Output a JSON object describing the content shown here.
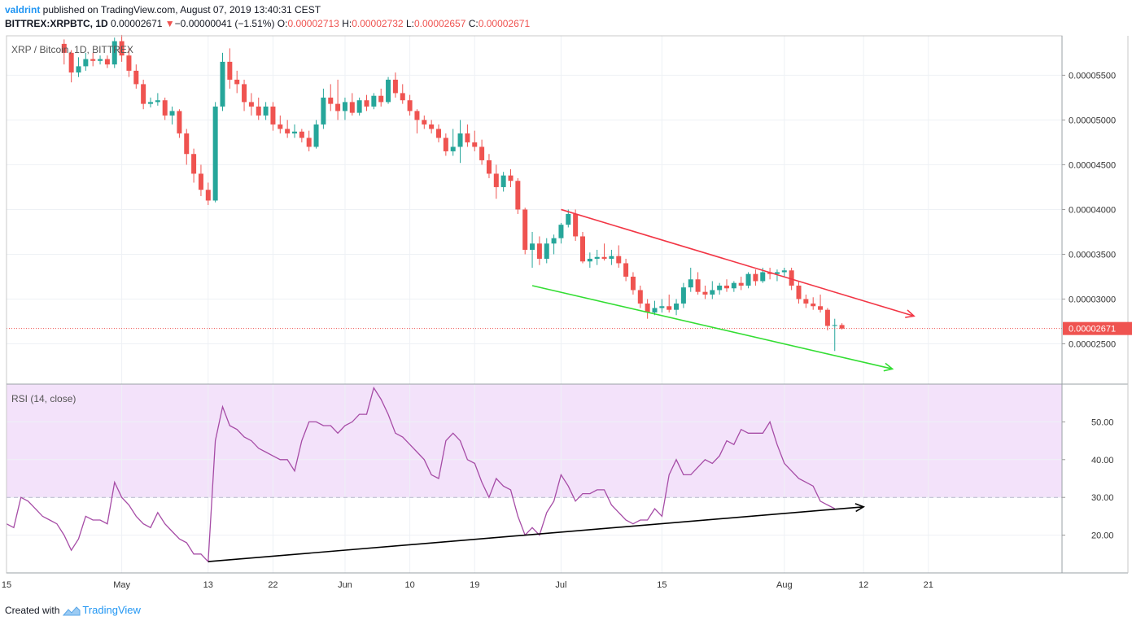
{
  "header": {
    "author": "valdrint",
    "published_text": " published on TradingView.com, August 07, 2019 13:40:31 CEST",
    "symbol": "BITTREX:XRPBTC, 1D",
    "last": "0.00002671",
    "change": "−0.00000041 (−1.51%)",
    "ohlc": {
      "o_label": "O:",
      "o": "0.00002713",
      "h_label": "H:",
      "h": "0.00002732",
      "l_label": "L:",
      "l": "0.00002657",
      "c_label": "C:",
      "c": "0.00002671"
    }
  },
  "footer": {
    "created_with": "Created with",
    "brand": "TradingView"
  },
  "colors": {
    "up": "#26a69a",
    "down": "#ef5350",
    "rsi_line": "#a64ca6",
    "rsi_band": "#f3e2fa",
    "resistance": "#f23645",
    "support": "#33dd33",
    "rsi_trend": "#000000",
    "price_line": "#ef5350",
    "grid": "#eef1f5"
  },
  "chart_data": [
    {
      "type": "candlestick",
      "title": "XRP / Bitcoin, 1D, BITTREX",
      "ylim": [
        2.05e-05,
        5.94e-05
      ],
      "y_ticks": [
        "0.00002500",
        "0.00003000",
        "0.00003500",
        "0.00004000",
        "0.00004500",
        "0.00005000",
        "0.00005500"
      ],
      "x_ticks": [
        {
          "date": "2019-04-15",
          "label": "15"
        },
        {
          "date": "2019-05-01",
          "label": "May"
        },
        {
          "date": "2019-05-13",
          "label": "13"
        },
        {
          "date": "2019-05-22",
          "label": "22"
        },
        {
          "date": "2019-06-01",
          "label": "Jun"
        },
        {
          "date": "2019-06-10",
          "label": "10"
        },
        {
          "date": "2019-06-19",
          "label": "19"
        },
        {
          "date": "2019-07-01",
          "label": "Jul"
        },
        {
          "date": "2019-07-15",
          "label": "15"
        },
        {
          "date": "2019-08-01",
          "label": "Aug"
        },
        {
          "date": "2019-08-12",
          "label": "12"
        },
        {
          "date": "2019-08-21",
          "label": "21"
        }
      ],
      "last_price": 2.671e-05,
      "last_price_label": "0.00002671",
      "start_date": "2019-04-23",
      "ohlc": [
        [
          5.85e-05,
          5.9e-05,
          5.62e-05,
          5.75e-05
        ],
        [
          5.75e-05,
          5.78e-05,
          5.42e-05,
          5.53e-05
        ],
        [
          5.53e-05,
          5.7e-05,
          5.48e-05,
          5.6e-05
        ],
        [
          5.6e-05,
          5.75e-05,
          5.55e-05,
          5.68e-05
        ],
        [
          5.68e-05,
          5.75e-05,
          5.6e-05,
          5.66e-05
        ],
        [
          5.66e-05,
          5.72e-05,
          5.62e-05,
          5.68e-05
        ],
        [
          5.68e-05,
          5.72e-05,
          5.58e-05,
          5.62e-05
        ],
        [
          5.62e-05,
          5.92e-05,
          5.58e-05,
          5.88e-05
        ],
        [
          5.88e-05,
          5.95e-05,
          5.65e-05,
          5.72e-05
        ],
        [
          5.72e-05,
          5.8e-05,
          5.48e-05,
          5.55e-05
        ],
        [
          5.55e-05,
          5.62e-05,
          5.35e-05,
          5.4e-05
        ],
        [
          5.4e-05,
          5.45e-05,
          5.12e-05,
          5.18e-05
        ],
        [
          5.18e-05,
          5.25e-05,
          5.14e-05,
          5.2e-05
        ],
        [
          5.2e-05,
          5.3e-05,
          5.16e-05,
          5.22e-05
        ],
        [
          5.22e-05,
          5.25e-05,
          5e-05,
          5.05e-05
        ],
        [
          5.05e-05,
          5.15e-05,
          4.95e-05,
          5.1e-05
        ],
        [
          5.1e-05,
          5.12e-05,
          4.8e-05,
          4.85e-05
        ],
        [
          4.85e-05,
          4.9e-05,
          4.5e-05,
          4.62e-05
        ],
        [
          4.62e-05,
          4.68e-05,
          4.3e-05,
          4.4e-05
        ],
        [
          4.4e-05,
          4.5e-05,
          4.15e-05,
          4.22e-05
        ],
        [
          4.22e-05,
          4.3e-05,
          4.05e-05,
          4.1e-05
        ],
        [
          4.1e-05,
          5.2e-05,
          4.08e-05,
          5.15e-05
        ],
        [
          5.15e-05,
          5.75e-05,
          5.1e-05,
          5.65e-05
        ],
        [
          5.65e-05,
          5.8e-05,
          5.35e-05,
          5.45e-05
        ],
        [
          5.45e-05,
          5.55e-05,
          5.3e-05,
          5.4e-05
        ],
        [
          5.4e-05,
          5.45e-05,
          5.1e-05,
          5.2e-05
        ],
        [
          5.2e-05,
          5.3e-05,
          5.05e-05,
          5.15e-05
        ],
        [
          5.15e-05,
          5.25e-05,
          5e-05,
          5.05e-05
        ],
        [
          5.05e-05,
          5.2e-05,
          5e-05,
          5.15e-05
        ],
        [
          5.15e-05,
          5.2e-05,
          4.88e-05,
          4.95e-05
        ],
        [
          4.95e-05,
          5.05e-05,
          4.85e-05,
          4.9e-05
        ],
        [
          4.9e-05,
          5e-05,
          4.8e-05,
          4.85e-05
        ],
        [
          4.85e-05,
          4.95e-05,
          4.8e-05,
          4.87e-05
        ],
        [
          4.87e-05,
          4.9e-05,
          4.75e-05,
          4.8e-05
        ],
        [
          4.8e-05,
          4.88e-05,
          4.65e-05,
          4.7e-05
        ],
        [
          4.7e-05,
          5e-05,
          4.68e-05,
          4.95e-05
        ],
        [
          4.95e-05,
          5.35e-05,
          4.9e-05,
          5.25e-05
        ],
        [
          5.25e-05,
          5.4e-05,
          5.1e-05,
          5.18e-05
        ],
        [
          5.18e-05,
          5.45e-05,
          5e-05,
          5.1e-05
        ],
        [
          5.1e-05,
          5.25e-05,
          5e-05,
          5.2e-05
        ],
        [
          5.2e-05,
          5.3e-05,
          5.05e-05,
          5.08e-05
        ],
        [
          5.08e-05,
          5.25e-05,
          5.05e-05,
          5.22e-05
        ],
        [
          5.22e-05,
          5.28e-05,
          5.1e-05,
          5.15e-05
        ],
        [
          5.15e-05,
          5.3e-05,
          5.12e-05,
          5.27e-05
        ],
        [
          5.27e-05,
          5.35e-05,
          5.15e-05,
          5.2e-05
        ],
        [
          5.2e-05,
          5.48e-05,
          5.18e-05,
          5.45e-05
        ],
        [
          5.45e-05,
          5.53e-05,
          5.25e-05,
          5.3e-05
        ],
        [
          5.3e-05,
          5.4e-05,
          5.18e-05,
          5.22e-05
        ],
        [
          5.22e-05,
          5.28e-05,
          5.05e-05,
          5.1e-05
        ],
        [
          5.1e-05,
          5.12e-05,
          4.85e-05,
          5e-05
        ],
        [
          5e-05,
          5.05e-05,
          4.9e-05,
          4.95e-05
        ],
        [
          4.95e-05,
          5e-05,
          4.85e-05,
          4.9e-05
        ],
        [
          4.9e-05,
          4.95e-05,
          4.75e-05,
          4.8e-05
        ],
        [
          4.8e-05,
          4.85e-05,
          4.6e-05,
          4.65e-05
        ],
        [
          4.65e-05,
          4.9e-05,
          4.6e-05,
          4.7e-05
        ],
        [
          4.7e-05,
          5e-05,
          4.52e-05,
          4.85e-05
        ],
        [
          4.85e-05,
          4.95e-05,
          4.7e-05,
          4.75e-05
        ],
        [
          4.75e-05,
          4.88e-05,
          4.65e-05,
          4.7e-05
        ],
        [
          4.7e-05,
          4.78e-05,
          4.5e-05,
          4.55e-05
        ],
        [
          4.55e-05,
          4.62e-05,
          4.35e-05,
          4.4e-05
        ],
        [
          4.4e-05,
          4.5e-05,
          4.12e-05,
          4.25e-05
        ],
        [
          4.25e-05,
          4.42e-05,
          4.2e-05,
          4.38e-05
        ],
        [
          4.38e-05,
          4.45e-05,
          4.25e-05,
          4.32e-05
        ],
        [
          4.32e-05,
          4.35e-05,
          3.95e-05,
          4e-05
        ],
        [
          4e-05,
          4.02e-05,
          3.5e-05,
          3.55e-05
        ],
        [
          3.55e-05,
          3.75e-05,
          3.35e-05,
          3.62e-05
        ],
        [
          3.62e-05,
          3.7e-05,
          3.38e-05,
          3.45e-05
        ],
        [
          3.45e-05,
          3.68e-05,
          3.4e-05,
          3.62e-05
        ],
        [
          3.62e-05,
          3.72e-05,
          3.5e-05,
          3.68e-05
        ],
        [
          3.68e-05,
          3.85e-05,
          3.62e-05,
          3.83e-05
        ],
        [
          3.83e-05,
          4e-05,
          3.8e-05,
          3.95e-05
        ],
        [
          3.95e-05,
          4e-05,
          3.65e-05,
          3.7e-05
        ],
        [
          3.7e-05,
          3.75e-05,
          3.4e-05,
          3.42e-05
        ],
        [
          3.42e-05,
          3.52e-05,
          3.35e-05,
          3.45e-05
        ],
        [
          3.45e-05,
          3.55e-05,
          3.38e-05,
          3.47e-05
        ],
        [
          3.47e-05,
          3.62e-05,
          3.43e-05,
          3.45e-05
        ],
        [
          3.45e-05,
          3.55e-05,
          3.38e-05,
          3.48e-05
        ],
        [
          3.48e-05,
          3.6e-05,
          3.35e-05,
          3.4e-05
        ],
        [
          3.4e-05,
          3.45e-05,
          3.2e-05,
          3.25e-05
        ],
        [
          3.25e-05,
          3.3e-05,
          3.05e-05,
          3.1e-05
        ],
        [
          3.1e-05,
          3.15e-05,
          2.9e-05,
          2.95e-05
        ],
        [
          2.95e-05,
          3e-05,
          2.78e-05,
          2.85e-05
        ],
        [
          2.85e-05,
          2.98e-05,
          2.82e-05,
          2.9e-05
        ],
        [
          2.9e-05,
          3e-05,
          2.85e-05,
          2.92e-05
        ],
        [
          2.92e-05,
          3.05e-05,
          2.85e-05,
          2.88e-05
        ],
        [
          2.88e-05,
          3e-05,
          2.82e-05,
          2.95e-05
        ],
        [
          2.95e-05,
          3.18e-05,
          2.9e-05,
          3.13e-05
        ],
        [
          3.13e-05,
          3.35e-05,
          3.08e-05,
          3.22e-05
        ],
        [
          3.22e-05,
          3.3e-05,
          3.05e-05,
          3.08e-05
        ],
        [
          3.08e-05,
          3.15e-05,
          3e-05,
          3.05e-05
        ],
        [
          3.05e-05,
          3.2e-05,
          3e-05,
          3.1e-05
        ],
        [
          3.1e-05,
          3.18e-05,
          3.05e-05,
          3.15e-05
        ],
        [
          3.15e-05,
          3.22e-05,
          3.08e-05,
          3.12e-05
        ],
        [
          3.12e-05,
          3.2e-05,
          3.08e-05,
          3.18e-05
        ],
        [
          3.18e-05,
          3.25e-05,
          3.1e-05,
          3.15e-05
        ],
        [
          3.15e-05,
          3.3e-05,
          3.12e-05,
          3.28e-05
        ],
        [
          3.28e-05,
          3.33e-05,
          3.15e-05,
          3.2e-05
        ],
        [
          3.2e-05,
          3.35e-05,
          3.18e-05,
          3.3e-05
        ],
        [
          3.3e-05,
          3.35e-05,
          3.22e-05,
          3.28e-05
        ],
        [
          3.28e-05,
          3.33e-05,
          3.2e-05,
          3.3e-05
        ],
        [
          3.3e-05,
          3.35e-05,
          3.25e-05,
          3.32e-05
        ],
        [
          3.32e-05,
          3.35e-05,
          3.1e-05,
          3.15e-05
        ],
        [
          3.15e-05,
          3.2e-05,
          2.95e-05,
          3e-05
        ],
        [
          3e-05,
          3.05e-05,
          2.9e-05,
          2.95e-05
        ],
        [
          2.95e-05,
          3.02e-05,
          2.88e-05,
          2.92e-05
        ],
        [
          2.92e-05,
          3.05e-05,
          2.85e-05,
          2.88e-05
        ],
        [
          2.88e-05,
          2.9e-05,
          2.65e-05,
          2.7e-05
        ],
        [
          2.7e-05,
          2.78e-05,
          2.42e-05,
          2.71e-05
        ],
        [
          2.71e-05,
          2.73e-05,
          2.66e-05,
          2.67e-05
        ]
      ],
      "annotations": [
        {
          "name": "resistance-line",
          "color": "resistance",
          "from": {
            "date": "2019-07-01",
            "value": 4e-05
          },
          "to": {
            "date": "2019-08-19",
            "value": 2.81e-05
          }
        },
        {
          "name": "support-line",
          "color": "support",
          "from": {
            "date": "2019-06-27",
            "value": 3.15e-05
          },
          "to": {
            "date": "2019-08-16",
            "value": 2.22e-05
          }
        }
      ]
    },
    {
      "type": "line",
      "title": "RSI (14, close)",
      "ylim": [
        10,
        60
      ],
      "y_ticks": [
        "20.00",
        "30.00",
        "40.00",
        "50.00"
      ],
      "band": [
        30,
        60
      ],
      "levels": [
        30
      ],
      "start_date": "2019-04-15",
      "values": [
        23,
        22,
        30,
        29,
        27,
        25,
        24,
        23,
        20,
        16,
        19,
        25,
        24,
        24,
        23,
        34,
        30,
        28,
        25,
        23,
        22,
        26,
        23,
        21,
        19,
        18,
        15,
        15,
        13,
        45,
        54,
        49,
        48,
        46,
        45,
        43,
        42,
        41,
        40,
        40,
        37,
        45,
        50,
        50,
        49,
        49,
        47,
        49,
        50,
        52,
        52,
        59,
        56,
        52,
        47,
        46,
        44,
        42,
        40,
        36,
        35,
        45,
        47,
        45,
        40,
        39,
        34,
        30,
        35,
        33,
        32,
        25,
        20,
        22,
        20,
        26,
        29,
        36,
        33,
        29,
        31,
        31,
        32,
        32,
        28,
        26,
        24,
        23,
        24,
        24,
        27,
        25,
        36,
        40,
        36,
        36,
        38,
        40,
        39,
        41,
        45,
        44,
        48,
        47,
        47,
        47,
        50,
        44,
        39,
        37,
        35,
        34,
        33,
        29,
        28,
        27
      ],
      "annotations": [
        {
          "name": "rsi-trend-line",
          "color": "rsi_trend",
          "from": {
            "date": "2019-05-13",
            "value": 13
          },
          "to": {
            "date": "2019-08-12",
            "value": 27.5
          }
        }
      ]
    }
  ]
}
